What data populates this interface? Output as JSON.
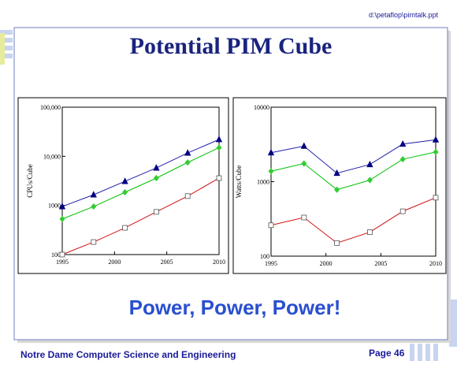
{
  "file_path": "d:\\petaflop\\pimtalk.ppt",
  "title": "Potential PIM Cube",
  "tagline": "Power, Power, Power!",
  "footer": {
    "text": "Notre Dame Computer Science and Engineering",
    "page": "Page 46"
  },
  "chart_data": [
    {
      "type": "line",
      "y_label": "CPUs/Cube",
      "log_y": true,
      "x": [
        1995,
        1998,
        2001,
        2004,
        2007,
        2010
      ],
      "xlim": [
        1995,
        2010
      ],
      "xticks": [
        1995,
        2000,
        2005,
        2010
      ],
      "ylim": [
        100,
        100000
      ],
      "yticks": [
        100,
        1000,
        {
          "value": 10000,
          "label": "10,000"
        },
        {
          "value": 100000,
          "label": "100,000"
        }
      ],
      "series": [
        {
          "color": "#1f1fa8",
          "marker": "triangle",
          "marker_color": "#000080",
          "values": [
            950,
            1650,
            3100,
            5800,
            11700,
            22000
          ]
        },
        {
          "color": "#00c000",
          "marker": "diamond",
          "marker_color": "#33cc33",
          "values": [
            530,
            950,
            1850,
            3600,
            7500,
            15000
          ]
        },
        {
          "color": "#d01010",
          "marker": "square",
          "marker_color": "#ffffff",
          "values": [
            100,
            180,
            350,
            740,
            1550,
            3600
          ]
        }
      ]
    },
    {
      "type": "line",
      "y_label": "Watts/Cube",
      "log_y": true,
      "x": [
        1995,
        1998,
        2001,
        2004,
        2007,
        2010
      ],
      "xlim": [
        1995,
        2010
      ],
      "xticks": [
        1995,
        2000,
        2005,
        2010
      ],
      "ylim": [
        100,
        10000
      ],
      "yticks": [
        100,
        1000,
        10000
      ],
      "series": [
        {
          "color": "#1f1fa8",
          "marker": "triangle",
          "marker_color": "#000080",
          "values": [
            2450,
            3000,
            1300,
            1700,
            3200,
            3650
          ]
        },
        {
          "color": "#00c000",
          "marker": "diamond",
          "marker_color": "#33cc33",
          "values": [
            1380,
            1750,
            780,
            1050,
            2000,
            2500
          ]
        },
        {
          "color": "#d01010",
          "marker": "square",
          "marker_color": "#ffffff",
          "values": [
            260,
            330,
            150,
            210,
            400,
            610
          ]
        }
      ]
    }
  ]
}
